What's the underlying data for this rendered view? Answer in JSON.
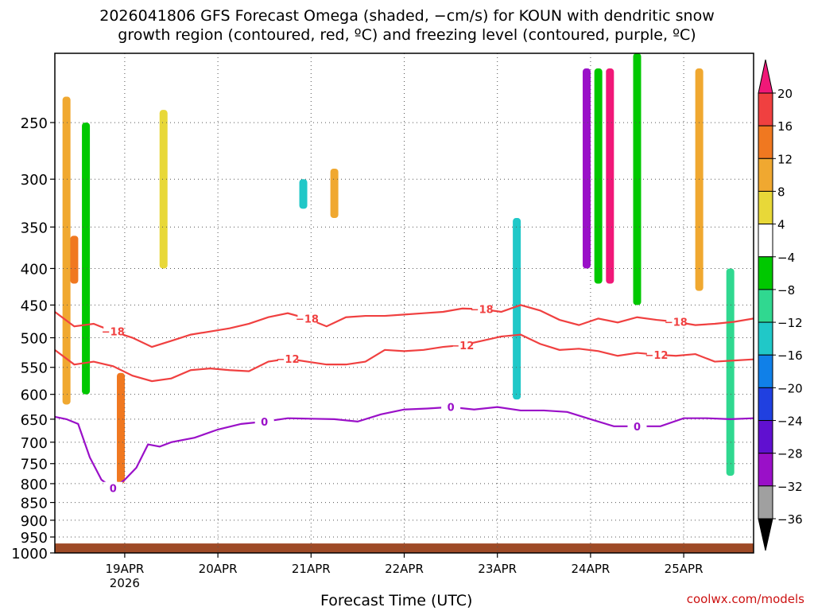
{
  "title": {
    "line1": "2026041806 GFS Forecast Omega (shaded, −cm/s) for KOUN with dendritic snow",
    "line2": "growth region (contoured, red, ºC) and freezing level (contoured, purple, ºC)"
  },
  "credit": "coolwx.com/models",
  "colors": {
    "ground": "#9e4a26",
    "dgz_contour": "#f04040",
    "freezing_contour": "#9a10c8",
    "grid": "#555555"
  },
  "chart_data": {
    "type": "heatmap",
    "title": "2026041806 GFS Forecast Omega (shaded, −cm/s) for KOUN",
    "xlabel": "Forecast Time (UTC)",
    "ylabel": "",
    "xlim_hours": [
      0,
      180
    ],
    "ylim_hpa": [
      200,
      1000
    ],
    "y_ticks": [
      "250",
      "300",
      "350",
      "400",
      "450",
      "500",
      "550",
      "600",
      "650",
      "700",
      "750",
      "800",
      "850",
      "900",
      "950",
      "1000"
    ],
    "x_ticks": [
      {
        "label": "19APR",
        "sub": "2026",
        "hour": 18
      },
      {
        "label": "20APR",
        "sub": "",
        "hour": 42
      },
      {
        "label": "21APR",
        "sub": "",
        "hour": 66
      },
      {
        "label": "22APR",
        "sub": "",
        "hour": 90
      },
      {
        "label": "23APR",
        "sub": "",
        "hour": 114
      },
      {
        "label": "24APR",
        "sub": "",
        "hour": 138
      },
      {
        "label": "25APR",
        "sub": "",
        "hour": 162
      }
    ],
    "colorbar": {
      "labels": [
        "20",
        "16",
        "12",
        "8",
        "4",
        "−4",
        "−8",
        "−12",
        "−16",
        "−20",
        "−24",
        "−28",
        "−32",
        "−36"
      ],
      "colors": [
        "#f01878",
        "#f04040",
        "#f07820",
        "#f0a830",
        "#e8d838",
        "#ffffff",
        "#00c800",
        "#30d890",
        "#20c8c8",
        "#1080e8",
        "#2040e0",
        "#6010d0",
        "#9a10c8",
        "#a0a0a0",
        "#000000"
      ]
    },
    "contours": {
      "dgz_minus18": {
        "label": "−18",
        "hours": [
          0,
          5,
          10,
          15,
          20,
          25,
          30,
          35,
          40,
          45,
          50,
          55,
          60,
          65,
          70,
          75,
          80,
          85,
          90,
          95,
          100,
          105,
          110,
          115,
          120,
          125,
          130,
          135,
          140,
          145,
          150,
          155,
          160,
          165,
          170,
          175,
          180
        ],
        "hpa": [
          460,
          482,
          478,
          490,
          500,
          515,
          505,
          495,
          490,
          485,
          478,
          468,
          462,
          470,
          482,
          468,
          466,
          466,
          464,
          462,
          460,
          455,
          456,
          460,
          450,
          458,
          472,
          480,
          470,
          476,
          468,
          472,
          475,
          480,
          478,
          475,
          470
        ]
      },
      "dgz_minus12": {
        "label": "−12",
        "hours": [
          0,
          5,
          10,
          15,
          20,
          25,
          30,
          35,
          40,
          45,
          50,
          55,
          60,
          65,
          70,
          75,
          80,
          85,
          90,
          95,
          100,
          105,
          110,
          115,
          120,
          125,
          130,
          135,
          140,
          145,
          150,
          155,
          160,
          165,
          170,
          175,
          180
        ],
        "hpa": [
          520,
          545,
          540,
          548,
          565,
          575,
          570,
          555,
          552,
          555,
          557,
          540,
          535,
          540,
          545,
          545,
          540,
          520,
          522,
          520,
          515,
          512,
          505,
          498,
          495,
          510,
          520,
          518,
          522,
          530,
          525,
          528,
          530,
          527,
          540,
          538,
          536
        ]
      },
      "freezing": {
        "label": "0",
        "hours": [
          0,
          3,
          6,
          9,
          12,
          15,
          18,
          21,
          24,
          27,
          30,
          36,
          42,
          48,
          54,
          60,
          66,
          72,
          78,
          84,
          90,
          96,
          102,
          108,
          114,
          120,
          126,
          132,
          138,
          144,
          150,
          156,
          162,
          168,
          174,
          180
        ],
        "hpa": [
          645,
          650,
          660,
          735,
          790,
          812,
          790,
          760,
          705,
          710,
          700,
          690,
          672,
          660,
          655,
          648,
          649,
          650,
          655,
          640,
          630,
          628,
          625,
          630,
          625,
          632,
          632,
          635,
          650,
          665,
          665,
          665,
          648,
          648,
          650,
          648
        ]
      }
    },
    "omega_features": [
      {
        "hour": 3,
        "p_top": 230,
        "p_bot": 620,
        "value": 10
      },
      {
        "hour": 5,
        "p_top": 360,
        "p_bot": 420,
        "value": 14
      },
      {
        "hour": 8,
        "p_top": 250,
        "p_bot": 600,
        "value": -8
      },
      {
        "hour": 17,
        "p_top": 560,
        "p_bot": 800,
        "value": 12
      },
      {
        "hour": 28,
        "p_top": 240,
        "p_bot": 400,
        "value": 6
      },
      {
        "hour": 72,
        "p_top": 290,
        "p_bot": 340,
        "value": 10
      },
      {
        "hour": 64,
        "p_top": 300,
        "p_bot": 330,
        "value": -14
      },
      {
        "hour": 119,
        "p_top": 340,
        "p_bot": 610,
        "value": -14
      },
      {
        "hour": 137,
        "p_top": 210,
        "p_bot": 400,
        "value": -30
      },
      {
        "hour": 140,
        "p_top": 210,
        "p_bot": 420,
        "value": -6
      },
      {
        "hour": 143,
        "p_top": 210,
        "p_bot": 420,
        "value": 22
      },
      {
        "hour": 150,
        "p_top": 200,
        "p_bot": 450,
        "value": -8
      },
      {
        "hour": 166,
        "p_top": 210,
        "p_bot": 430,
        "value": 10
      },
      {
        "hour": 174,
        "p_top": 400,
        "p_bot": 780,
        "value": -10
      }
    ]
  }
}
